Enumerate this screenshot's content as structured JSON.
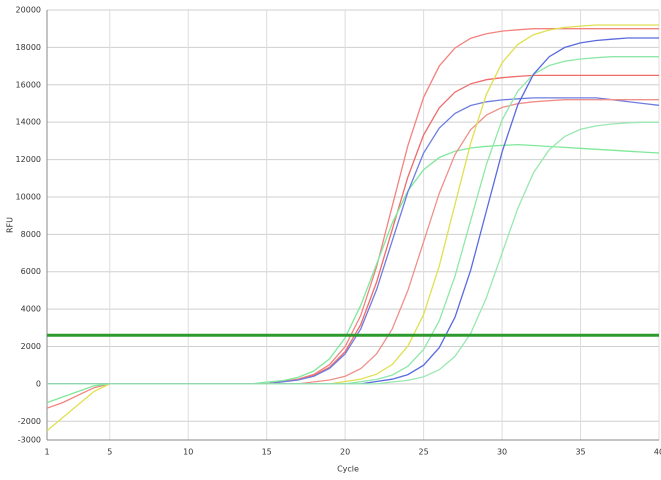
{
  "chart_data": {
    "type": "line",
    "xlabel": "Cycle",
    "ylabel": "RFU",
    "x": [
      1,
      2,
      3,
      4,
      5,
      6,
      7,
      8,
      9,
      10,
      11,
      12,
      13,
      14,
      15,
      16,
      17,
      18,
      19,
      20,
      21,
      22,
      23,
      24,
      25,
      26,
      27,
      28,
      29,
      30,
      31,
      32,
      33,
      34,
      35,
      36,
      37,
      38,
      39,
      40
    ],
    "xlim": [
      1,
      40
    ],
    "xticks": [
      1,
      5,
      10,
      15,
      20,
      25,
      30,
      35,
      40
    ],
    "ylim": [
      -3000,
      20000
    ],
    "yticks": [
      -3000,
      -2000,
      0,
      2000,
      4000,
      6000,
      8000,
      10000,
      12000,
      14000,
      16000,
      18000,
      20000
    ],
    "grid": true,
    "threshold": {
      "value": 2600,
      "color": "#2e9a2e"
    },
    "series": [
      {
        "color": "#f4827f",
        "values": [
          -1300,
          -1000,
          -600,
          -200,
          0,
          0,
          0,
          0,
          0,
          0,
          0,
          0,
          0,
          0,
          0,
          130,
          260,
          510,
          1030,
          2000,
          3670,
          6250,
          9500,
          12750,
          15330,
          17010,
          17970,
          18490,
          18730,
          18870,
          18940,
          19000,
          19000,
          19000,
          19000,
          19000,
          19000,
          19000,
          19000,
          19000
        ]
      },
      {
        "color": "#f06a6a",
        "values": [
          0,
          0,
          0,
          0,
          0,
          0,
          0,
          0,
          0,
          0,
          0,
          0,
          0,
          0,
          0,
          120,
          220,
          450,
          890,
          1730,
          3180,
          5430,
          8250,
          11070,
          13320,
          14770,
          15610,
          16050,
          16270,
          16380,
          16450,
          16500,
          16500,
          16500,
          16500,
          16500,
          16500,
          16500,
          16500,
          16500
        ]
      },
      {
        "color": "#7fe89a",
        "values": [
          -1000,
          -700,
          -400,
          -100,
          0,
          0,
          0,
          0,
          0,
          0,
          0,
          0,
          0,
          0,
          90,
          170,
          350,
          690,
          1340,
          2470,
          4210,
          6400,
          8590,
          10330,
          11460,
          12110,
          12450,
          12620,
          12710,
          12760,
          12800,
          12750,
          12700,
          12650,
          12600,
          12550,
          12500,
          12450,
          12400,
          12350
        ]
      },
      {
        "color": "#6f7de0",
        "values": [
          0,
          0,
          0,
          0,
          0,
          0,
          0,
          0,
          0,
          0,
          0,
          0,
          0,
          0,
          0,
          110,
          210,
          410,
          830,
          1610,
          2950,
          5030,
          7650,
          10270,
          12350,
          13690,
          14470,
          14890,
          15090,
          15190,
          15250,
          15300,
          15300,
          15300,
          15300,
          15300,
          15200,
          15100,
          15000,
          14900
        ]
      },
      {
        "color": "#f0908a",
        "values": [
          0,
          0,
          0,
          0,
          0,
          0,
          0,
          0,
          0,
          0,
          0,
          0,
          0,
          0,
          0,
          0,
          0,
          110,
          210,
          410,
          820,
          1600,
          2930,
          5000,
          7600,
          10200,
          12270,
          13600,
          14380,
          14790,
          14990,
          15090,
          15150,
          15200,
          15200,
          15200,
          15200,
          15200,
          15200,
          15200
        ]
      },
      {
        "color": "#e0e050",
        "values": [
          -2500,
          -1800,
          -1100,
          -400,
          0,
          0,
          0,
          0,
          0,
          0,
          0,
          0,
          0,
          0,
          0,
          0,
          0,
          0,
          0,
          130,
          260,
          520,
          1040,
          2020,
          3710,
          6320,
          9600,
          12880,
          15490,
          17180,
          18160,
          18680,
          18930,
          19070,
          19140,
          19200,
          19200,
          19200,
          19200,
          19200
        ]
      },
      {
        "color": "#8fe8a8",
        "values": [
          0,
          0,
          0,
          0,
          0,
          0,
          0,
          0,
          0,
          0,
          0,
          0,
          0,
          0,
          0,
          0,
          0,
          0,
          0,
          0,
          120,
          240,
          470,
          950,
          1840,
          3380,
          5760,
          8750,
          11740,
          14120,
          15660,
          16560,
          17030,
          17260,
          17380,
          17450,
          17500,
          17500,
          17500,
          17500
        ]
      },
      {
        "color": "#5a6ae0",
        "values": [
          0,
          0,
          0,
          0,
          0,
          0,
          0,
          0,
          0,
          0,
          0,
          0,
          0,
          0,
          0,
          0,
          0,
          0,
          0,
          0,
          0,
          130,
          250,
          500,
          1000,
          1940,
          3570,
          6090,
          9250,
          12410,
          14930,
          16560,
          17500,
          18000,
          18240,
          18370,
          18440,
          18500,
          18500,
          18500
        ]
      },
      {
        "color": "#9ae8b0",
        "values": [
          0,
          0,
          0,
          0,
          0,
          0,
          0,
          0,
          0,
          0,
          0,
          0,
          0,
          0,
          0,
          0,
          0,
          0,
          0,
          0,
          0,
          0,
          100,
          190,
          380,
          760,
          1470,
          2700,
          4610,
          7000,
          9390,
          11300,
          12530,
          13240,
          13620,
          13800,
          13900,
          13960,
          14000,
          14000
        ]
      }
    ]
  }
}
